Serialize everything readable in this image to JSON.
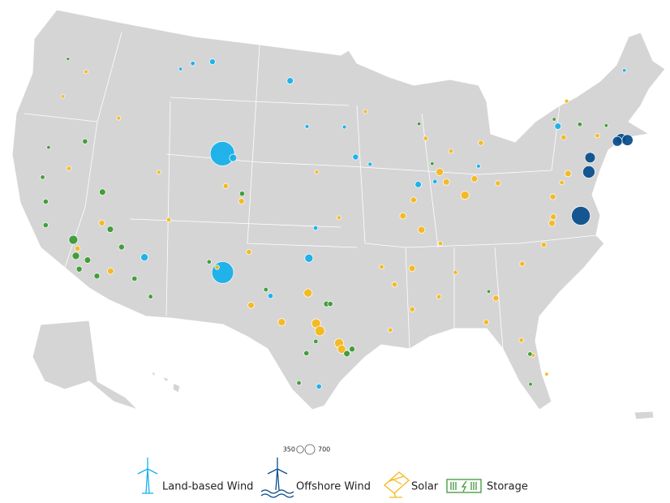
{
  "chart_data": {
    "type": "bubble_map",
    "size_legend": [
      350,
      700
    ],
    "series": [
      {
        "name": "Land-based Wind",
        "color": "#17b0ea",
        "lon": [
          -106.6,
          -105.6,
          -105.5,
          -110.5,
          -108.6,
          -111.6,
          -112.0,
          -98.5,
          -98.0,
          -94.5,
          -93.2,
          -99.0,
          -100.8,
          -101.5,
          -97.5,
          -89.0,
          -87.5,
          -75.8,
          -68.5,
          -83.5,
          -95.5
        ],
        "lat": [
          42.3,
          42.1,
          34.5,
          48.0,
          48.3,
          47.5,
          34.8,
          35.8,
          37.8,
          42.5,
          42.0,
          44.5,
          47.5,
          33.2,
          27.3,
          40.5,
          40.6,
          43.0,
          45.5,
          41.3,
          44.5
        ],
        "values": [
          4400,
          400,
          3500,
          150,
          250,
          100,
          400,
          500,
          150,
          250,
          120,
          120,
          300,
          200,
          200,
          300,
          150,
          300,
          100,
          120,
          120
        ]
      },
      {
        "name": "Offshore Wind",
        "color": "#0b4f8c",
        "lon": [
          -75.5,
          -70.5,
          -70.0,
          -70.9,
          -74.0,
          -73.6
        ],
        "lat": [
          36.9,
          41.2,
          41.0,
          41.1,
          39.6,
          40.5
        ],
        "values": [
          2600,
          800,
          900,
          700,
          1100,
          800
        ]
      },
      {
        "name": "Solar",
        "color": "#f6b81c",
        "lon": [
          -97.8,
          -97.5,
          -96.0,
          -95.8,
          -98.5,
          -100.5,
          -85.0,
          -86.5,
          -87.0,
          -89.5,
          -90.5,
          -84.0,
          -82.0,
          -77.8,
          -78.0,
          -79.0,
          -81.0,
          -83.5,
          -84.5,
          -82.0,
          -81.3,
          -80.5,
          -90.0,
          -91.5,
          -92.5,
          -90.2,
          -92.0,
          -88.0,
          -86.5,
          -87.5,
          -89.0,
          -117.5,
          -114.5,
          -116.0,
          -119.8,
          -116.5,
          -120.5,
          -122.0,
          -112.0,
          -110.5,
          -106.0,
          -104.5,
          -103.5,
          -103.0,
          -75.8,
          -76.5,
          -77.5,
          -72.5,
          -74.5,
          -75.5,
          -83.0,
          -85.8,
          -88.0,
          -93.5,
          -98.0,
          -96.0,
          -106.0
        ],
        "lat": [
          31.5,
          31.0,
          30.2,
          29.8,
          33.5,
          31.5,
          39.5,
          40.5,
          41.2,
          39.5,
          38.5,
          40.5,
          40.0,
          37.2,
          36.8,
          35.5,
          34.5,
          32.5,
          31.0,
          29.5,
          28.4,
          27.0,
          35.0,
          34.0,
          35.2,
          32.3,
          31.0,
          33.0,
          34.5,
          36.5,
          37.5,
          34.5,
          33.5,
          36.5,
          39.5,
          43.5,
          46.0,
          44.0,
          40.5,
          37.5,
          40.2,
          39.3,
          36.0,
          32.5,
          39.8,
          39.3,
          38.5,
          41.8,
          44.5,
          42.2,
          42.8,
          42.5,
          43.5,
          45.5,
          41.5,
          38.5,
          34.8
        ],
        "values": [
          600,
          700,
          600,
          500,
          500,
          400,
          500,
          300,
          400,
          250,
          300,
          300,
          200,
          250,
          300,
          200,
          200,
          250,
          200,
          150,
          150,
          100,
          300,
          200,
          150,
          200,
          150,
          150,
          150,
          150,
          350,
          200,
          300,
          250,
          150,
          120,
          120,
          100,
          120,
          150,
          200,
          250,
          200,
          300,
          300,
          150,
          250,
          150,
          120,
          200,
          200,
          150,
          150,
          120,
          120,
          120,
          150
        ]
      },
      {
        "name": "Storage",
        "color": "#3c9a35",
        "lon": [
          -118.0,
          -117.5,
          -116.5,
          -117.0,
          -121.0,
          -121.8,
          -122.0,
          -120.5,
          -115.5,
          -114.0,
          -112.5,
          -111.0,
          -115.2,
          -116.5,
          -119.0,
          -122.5,
          -104.5,
          -106.7,
          -97.0,
          -96.7,
          -95.4,
          -95.0,
          -98.5,
          -97.8,
          -101.9,
          -99.0,
          -84.0,
          -81.5,
          -76.0,
          -73.8,
          -71.5,
          -87.6,
          -88.5,
          -81.8
        ],
        "lat": [
          35.0,
          34.0,
          33.9,
          33.2,
          37.0,
          38.5,
          40.5,
          35.5,
          33.0,
          35.2,
          33.3,
          32.3,
          36.2,
          38.5,
          41.5,
          46.5,
          39.8,
          35.1,
          32.8,
          32.8,
          29.5,
          29.8,
          29.5,
          30.3,
          33.6,
          27.5,
          33.0,
          28.5,
          43.5,
          42.8,
          42.3,
          41.8,
          44.5,
          26.5
        ],
        "values": [
          600,
          400,
          300,
          250,
          200,
          150,
          100,
          200,
          250,
          250,
          200,
          150,
          300,
          300,
          200,
          80,
          200,
          150,
          250,
          200,
          300,
          250,
          200,
          150,
          150,
          150,
          100,
          150,
          100,
          150,
          100,
          100,
          100,
          100
        ]
      }
    ]
  }
}
